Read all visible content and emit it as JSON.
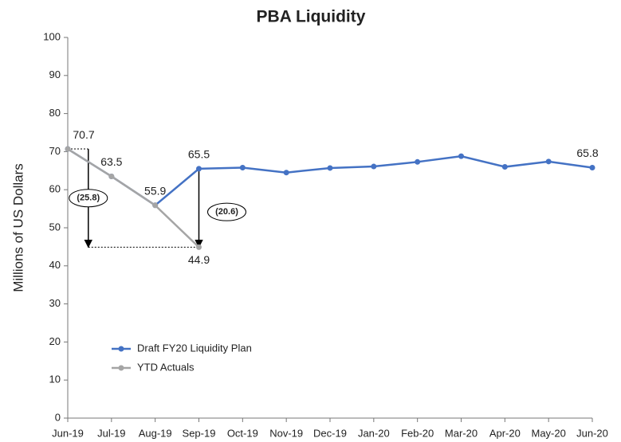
{
  "chart_data": {
    "type": "line",
    "title": "PBA Liquidity",
    "ylabel": "Millions of US Dollars",
    "categories": [
      "Jun-19",
      "Jul-19",
      "Aug-19",
      "Sep-19",
      "Oct-19",
      "Nov-19",
      "Dec-19",
      "Jan-20",
      "Feb-20",
      "Mar-20",
      "Apr-20",
      "May-20",
      "Jun-20"
    ],
    "series": [
      {
        "name": "Draft FY20 Liquidity Plan",
        "color": "#4472c4",
        "values": [
          70.7,
          63.5,
          55.9,
          65.5,
          65.8,
          64.5,
          65.7,
          66.1,
          67.3,
          68.8,
          66.0,
          67.4,
          65.8
        ],
        "value_labels": [
          "70.7",
          "63.5",
          "55.9",
          "65.5",
          null,
          null,
          null,
          null,
          null,
          null,
          null,
          null,
          "65.8"
        ]
      },
      {
        "name": "YTD Actuals",
        "color": "#a5a5a5",
        "values": [
          70.7,
          63.5,
          55.9,
          44.9,
          null,
          null,
          null,
          null,
          null,
          null,
          null,
          null,
          null
        ],
        "value_labels": [
          null,
          null,
          null,
          "44.9",
          null,
          null,
          null,
          null,
          null,
          null,
          null,
          null,
          null
        ]
      }
    ],
    "annotations": [
      "(25.8)",
      "(20.6)"
    ],
    "ylim": [
      0,
      100
    ],
    "yticks": [
      0,
      10,
      20,
      30,
      40,
      50,
      60,
      70,
      80,
      90,
      100
    ],
    "grid": false,
    "legend": "lower left"
  }
}
